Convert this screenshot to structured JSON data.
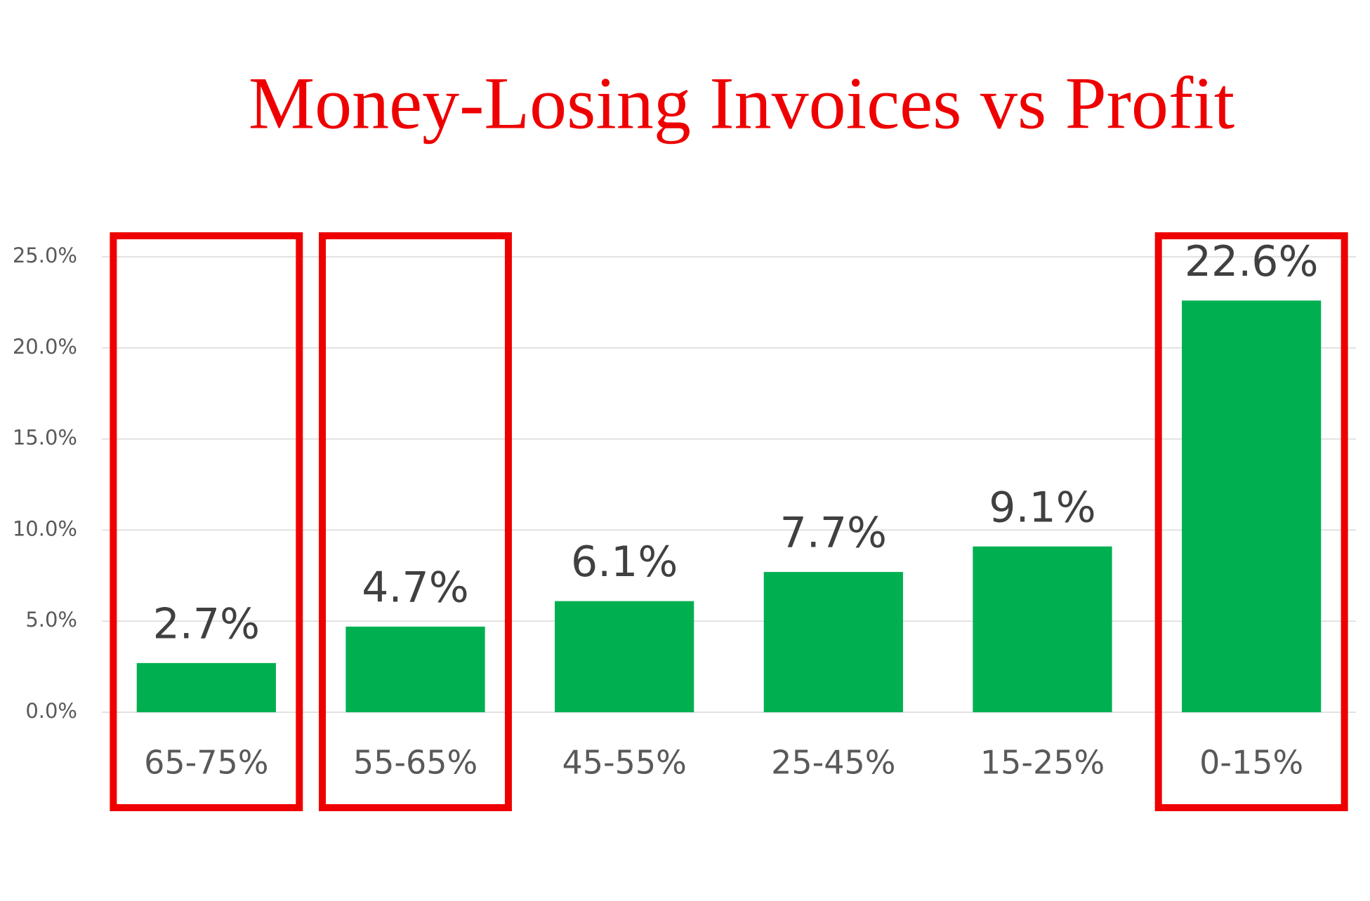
{
  "chart_data": {
    "type": "bar",
    "title": "Money-Losing Invoices vs Profit",
    "categories": [
      "65-75%",
      "55-65%",
      "45-55%",
      "25-45%",
      "15-25%",
      "0-15%"
    ],
    "values": [
      2.7,
      4.7,
      6.1,
      7.7,
      9.1,
      22.6
    ],
    "value_labels": [
      "2.7%",
      "4.7%",
      "6.1%",
      "7.7%",
      "9.1%",
      "22.6%"
    ],
    "color": "#00b050",
    "highlight": [
      true,
      true,
      false,
      false,
      false,
      true
    ],
    "highlight_color": "#ee0000",
    "ylim": [
      0,
      25
    ],
    "yticks": [
      {
        "value": 0,
        "label": "0.0%"
      },
      {
        "value": 5,
        "label": "5.0%"
      },
      {
        "value": 10,
        "label": "10.0%"
      },
      {
        "value": 15,
        "label": "15.0%"
      },
      {
        "value": 20,
        "label": "20.0%"
      },
      {
        "value": 25,
        "label": "25.0%"
      }
    ],
    "grid": true
  }
}
